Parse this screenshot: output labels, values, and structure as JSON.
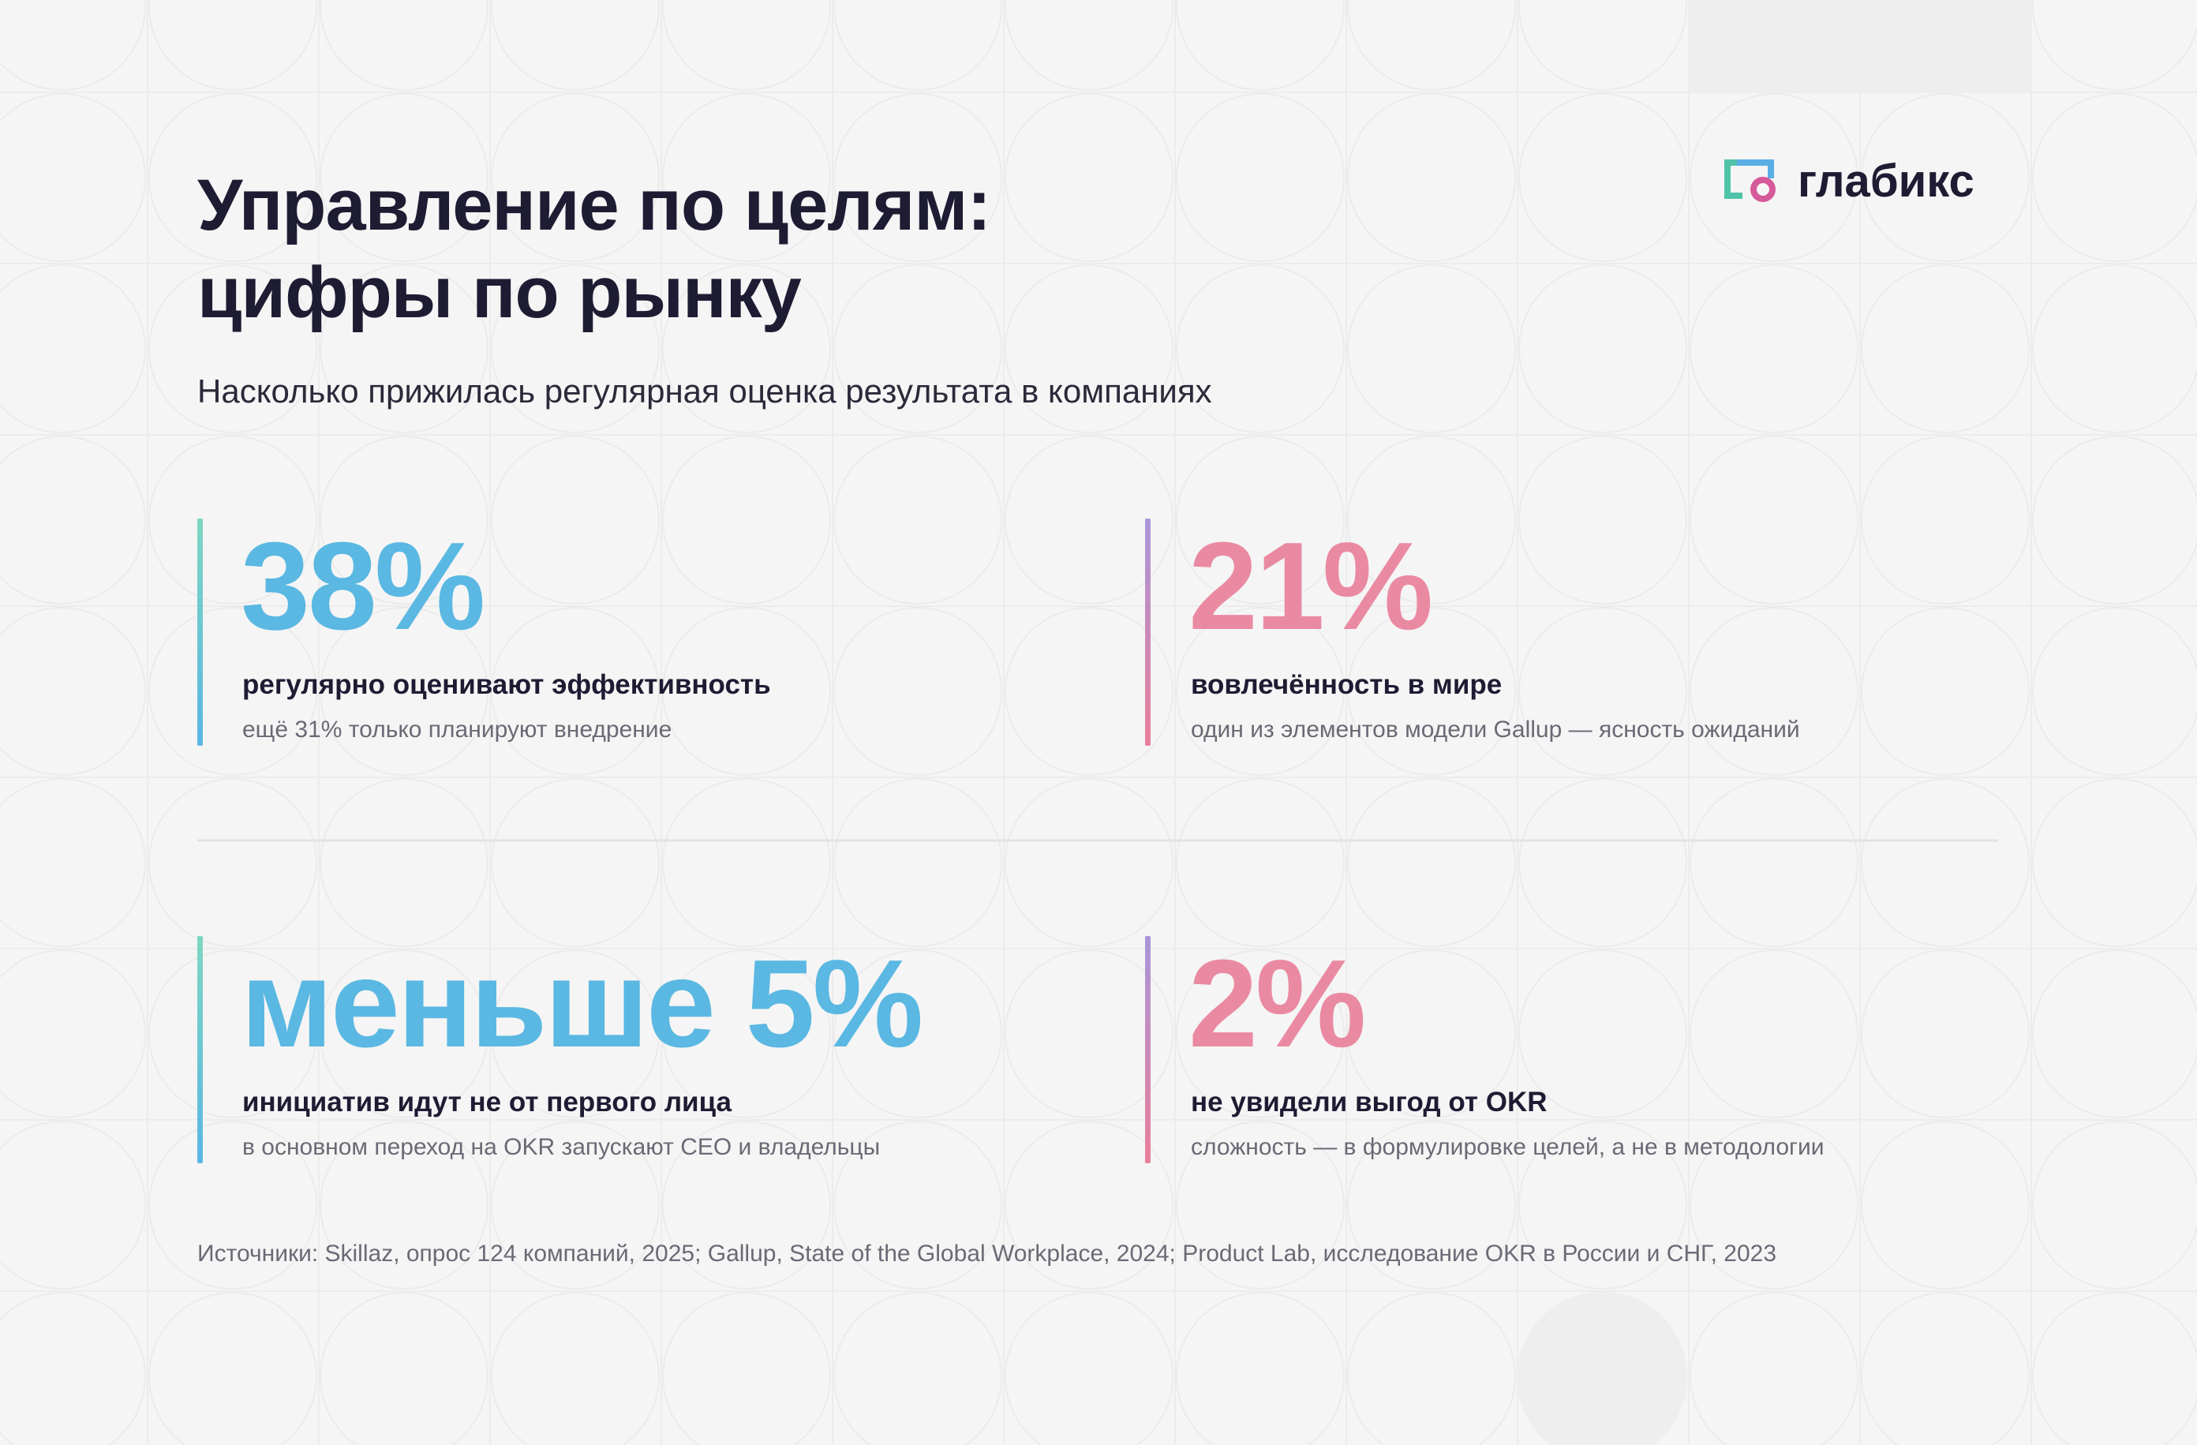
{
  "header": {
    "title_lines": [
      "Управление по целям:",
      "цифры по рынку"
    ],
    "subtitle": "Насколько прижилась регулярная оценка результата в компаниях"
  },
  "logo": {
    "text": "глабикс"
  },
  "stats": [
    {
      "value": "38%",
      "label": "регулярно оценивают эффективность",
      "note": "ещё 31% только планируют внедрение"
    },
    {
      "value": "21%",
      "label": "вовлечённость в мире",
      "note": "один из элементов модели Gallup — ясность ожиданий"
    },
    {
      "value": "меньше 5%",
      "label": "инициатив идут не от первого лица",
      "note": "в основном переход на OKR запускают CEO и владельцы"
    },
    {
      "value": "2%",
      "label": "не увидели выгод от OKR",
      "note": "сложность — в формулировке целей, а не в методологии"
    }
  ],
  "sources": "Источники: Skillaz, опрос 124 компаний, 2025; Gallup, State of the Global Workplace, 2024; Product Lab, исследование OKR в России и СНГ, 2023"
}
